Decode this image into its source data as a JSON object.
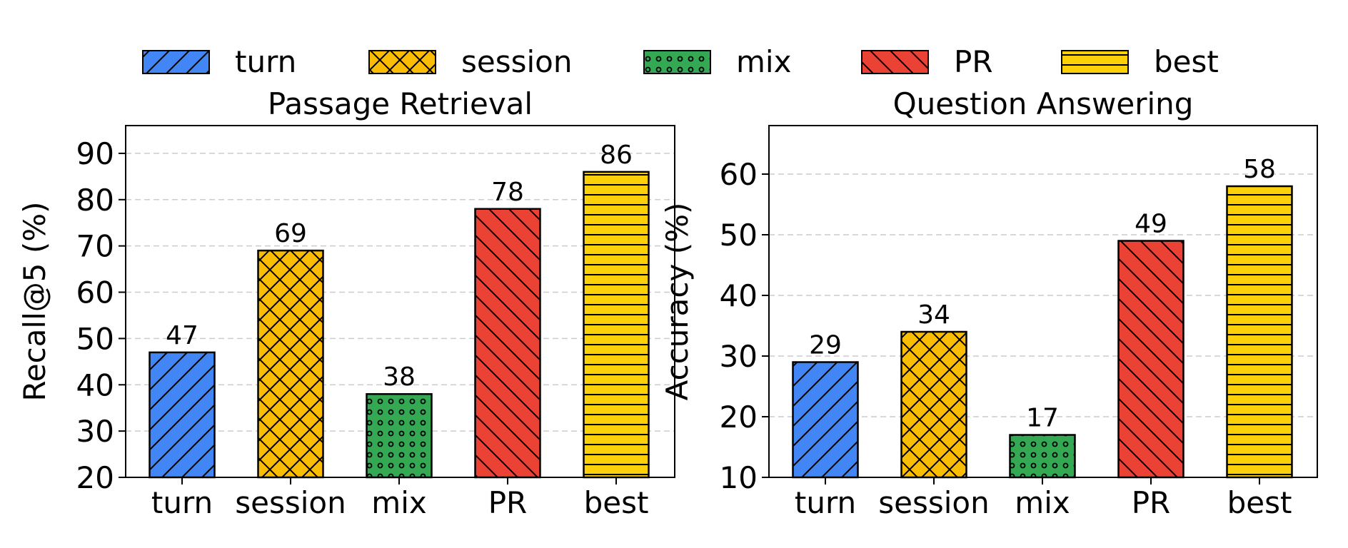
{
  "legend": [
    {
      "name": "turn",
      "color": "#4285f4",
      "pattern": "diag-up"
    },
    {
      "name": "session",
      "color": "#fbbc04",
      "pattern": "crosshatch"
    },
    {
      "name": "mix",
      "color": "#34a853",
      "pattern": "dots"
    },
    {
      "name": "PR",
      "color": "#ea4335",
      "pattern": "diag-down"
    },
    {
      "name": "best",
      "color": "#fdd10a",
      "pattern": "horizontal"
    }
  ],
  "chart_data": [
    {
      "type": "bar",
      "title": "Passage Retrieval",
      "xlabel": "",
      "ylabel": "Recall@5 (%)",
      "ylim": [
        20,
        96
      ],
      "yticks": [
        20,
        30,
        40,
        50,
        60,
        70,
        80,
        90
      ],
      "categories": [
        "turn",
        "session",
        "mix",
        "PR",
        "best"
      ],
      "values": [
        47,
        69,
        38,
        78,
        86
      ],
      "grid": "horizontal dashed",
      "legend": "top"
    },
    {
      "type": "bar",
      "title": "Question Answering",
      "xlabel": "",
      "ylabel": "Accuracy (%)",
      "ylim": [
        10,
        68
      ],
      "yticks": [
        10,
        20,
        30,
        40,
        50,
        60
      ],
      "categories": [
        "turn",
        "session",
        "mix",
        "PR",
        "best"
      ],
      "values": [
        29,
        34,
        17,
        49,
        58
      ],
      "grid": "horizontal dashed",
      "legend": "top"
    }
  ]
}
